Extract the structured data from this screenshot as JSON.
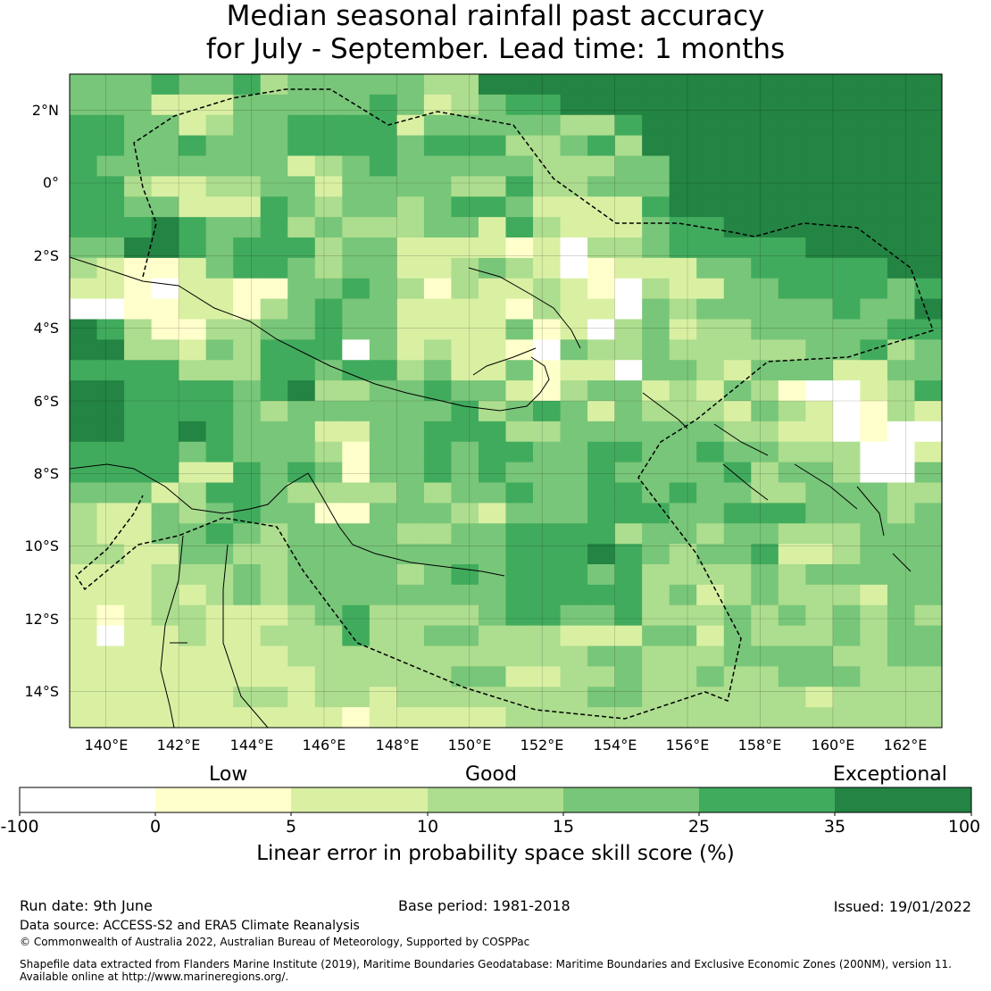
{
  "title_line1": "Median seasonal rainfall past accuracy",
  "title_line2": "for July - September. Lead time: 1 months",
  "map": {
    "lon_ticks": [
      "140°E",
      "142°E",
      "144°E",
      "146°E",
      "148°E",
      "150°E",
      "152°E",
      "154°E",
      "156°E",
      "158°E",
      "160°E",
      "162°E"
    ],
    "lat_ticks": [
      "2°N",
      "0°",
      "2°S",
      "4°S",
      "6°S",
      "8°S",
      "10°S",
      "12°S",
      "14°S"
    ],
    "lon_range": [
      139,
      163
    ],
    "lat_range": [
      -15,
      3
    ],
    "grid_rows": [
      "44454453444443366666666666666666",
      "44422244444542345566666666666666",
      "55442344555524444433566666666666",
      "55445444555545553345366666666666",
      "54444444234544444333446666666666",
      "55322334424444335334446666666666",
      "55442225434434554222256666666666",
      "55565445343334425322245566666666",
      "44665455534422221203345555566666",
      "32112455434422343201222445555566",
      "22102211445431322321032244555545",
      "00112213454422221322043444445446",
      "65311334454422224120342334444455",
      "66332435550423221043343333344534",
      "55553335545534224122044324442244",
      "66555545633445442134423243100235",
      "66555543444444534542433324320132",
      "66556544422445553344444433220100",
      "55554544431445455445544544333002",
      "55552254541445454445444453443004",
      "44423554333343445445545443344433",
      "32243454411444324445554455544434",
      "32244543444433445555344344333444",
      "33224433444444445556543445223444",
      "22233343444434545554533334344444",
      "22232343444444445555534234333244",
      "21233222345333345544533343434343",
      "20223223335334433322244243334344",
      "22222222333333333334433344443344",
      "22222222233333442233433433444333",
      "22222233233233333334433333323333",
      "22222222221222223333333333333333"
    ],
    "palette": [
      "#ffffff",
      "#ffffcc",
      "#d9f0a3",
      "#addd8e",
      "#78c679",
      "#41ab5d",
      "#238443"
    ]
  },
  "colorbar": {
    "category_low": "Low",
    "category_good": "Good",
    "category_exceptional": "Exceptional",
    "ticks": [
      "-100",
      "0",
      "5",
      "10",
      "15",
      "25",
      "35",
      "100"
    ],
    "label": "Linear error in probability space skill score (%)"
  },
  "footer": {
    "run_date": "Run date: 9th June",
    "base_period": "Base period: 1981-2018",
    "issued": "Issued: 19/01/2022",
    "data_source": "Data source: ACCESS-S2 and ERA5 Climate Reanalysis",
    "copyright": "© Commonwealth of Australia 2022, Australian Bureau of Meteorology, Supported by COSPPac",
    "shapefile_line1": "Shapefile data extracted from Flanders Marine Institute (2019), Maritime Boundaries Geodatabase: Maritime Boundaries and Exclusive Economic Zones (200NM), version 11.",
    "shapefile_line2": "Available online at http://www.marineregions.org/."
  }
}
